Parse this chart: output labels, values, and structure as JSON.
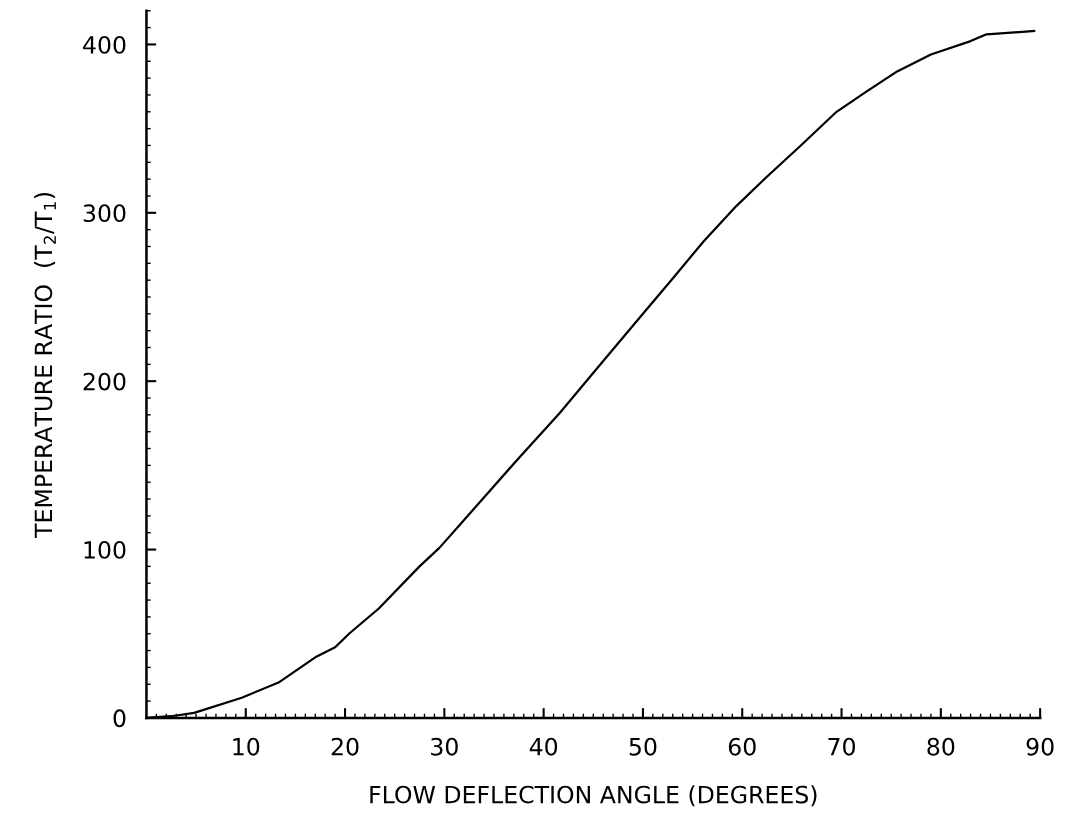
{
  "chart_data": {
    "type": "line",
    "xlabel": "FLOW DEFLECTION ANGLE (DEGREES)",
    "ylabel": "TEMPERATURE RATIO  (T$_{2}$/T$_{1}$)",
    "xlim": [
      0,
      90
    ],
    "ylim": [
      0,
      420
    ],
    "xticks": [
      10,
      20,
      30,
      40,
      50,
      60,
      70,
      80,
      90
    ],
    "yticks": [
      0,
      100,
      200,
      300,
      400
    ],
    "grid": false,
    "marker": "none",
    "line_style": "solid",
    "series": [
      {
        "color": "#000000",
        "x": [
          0,
          2.5,
          4.8,
          9.6,
          13.3,
          17.0,
          19.0,
          20.4,
          23.4,
          27.5,
          29.5,
          32.5,
          37.6,
          41.6,
          46,
          50,
          53,
          56.1,
          59.4,
          62.4,
          65.9,
          69.5,
          72.5,
          75.6,
          79,
          83,
          84.6,
          89.4
        ],
        "values": [
          0,
          1,
          3,
          12,
          21,
          36,
          42,
          50,
          65,
          90,
          101,
          121,
          155,
          181,
          212,
          240,
          261,
          283,
          304,
          321,
          340,
          360,
          372,
          384,
          394,
          402,
          406,
          408
        ]
      }
    ]
  }
}
